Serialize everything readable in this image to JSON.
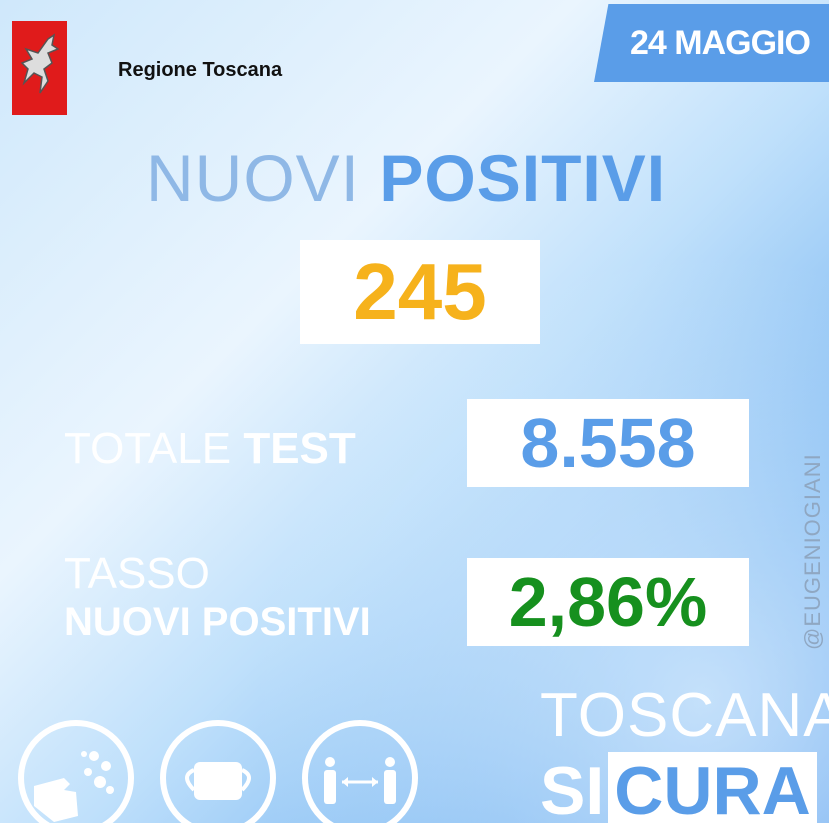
{
  "header": {
    "brand": "Regione Toscana",
    "date": "24 MAGGIO",
    "logo": "pegasus-logo"
  },
  "title": {
    "light": "NUOVI ",
    "bold": "POSITIVI"
  },
  "nuovi_positivi": "245",
  "totale_test": {
    "label_light": "TOTALE ",
    "label_bold": "TEST",
    "value": "8.558"
  },
  "tasso": {
    "line1": "TASSO",
    "line2": "NUOVI POSITIVI",
    "value": "2,86%"
  },
  "watermark": "@EUGENIOGIANI",
  "footer": {
    "line1": "TOSCANA",
    "line2_plain": "SI",
    "line2_boxed": "CURA",
    "icons": [
      "hand-wash-icon",
      "face-mask-icon",
      "social-distance-icon"
    ]
  },
  "colors": {
    "accent": "#5a9de8",
    "positives": "#f6b21c",
    "rate": "#16901e",
    "logo": "#e01b1b"
  }
}
